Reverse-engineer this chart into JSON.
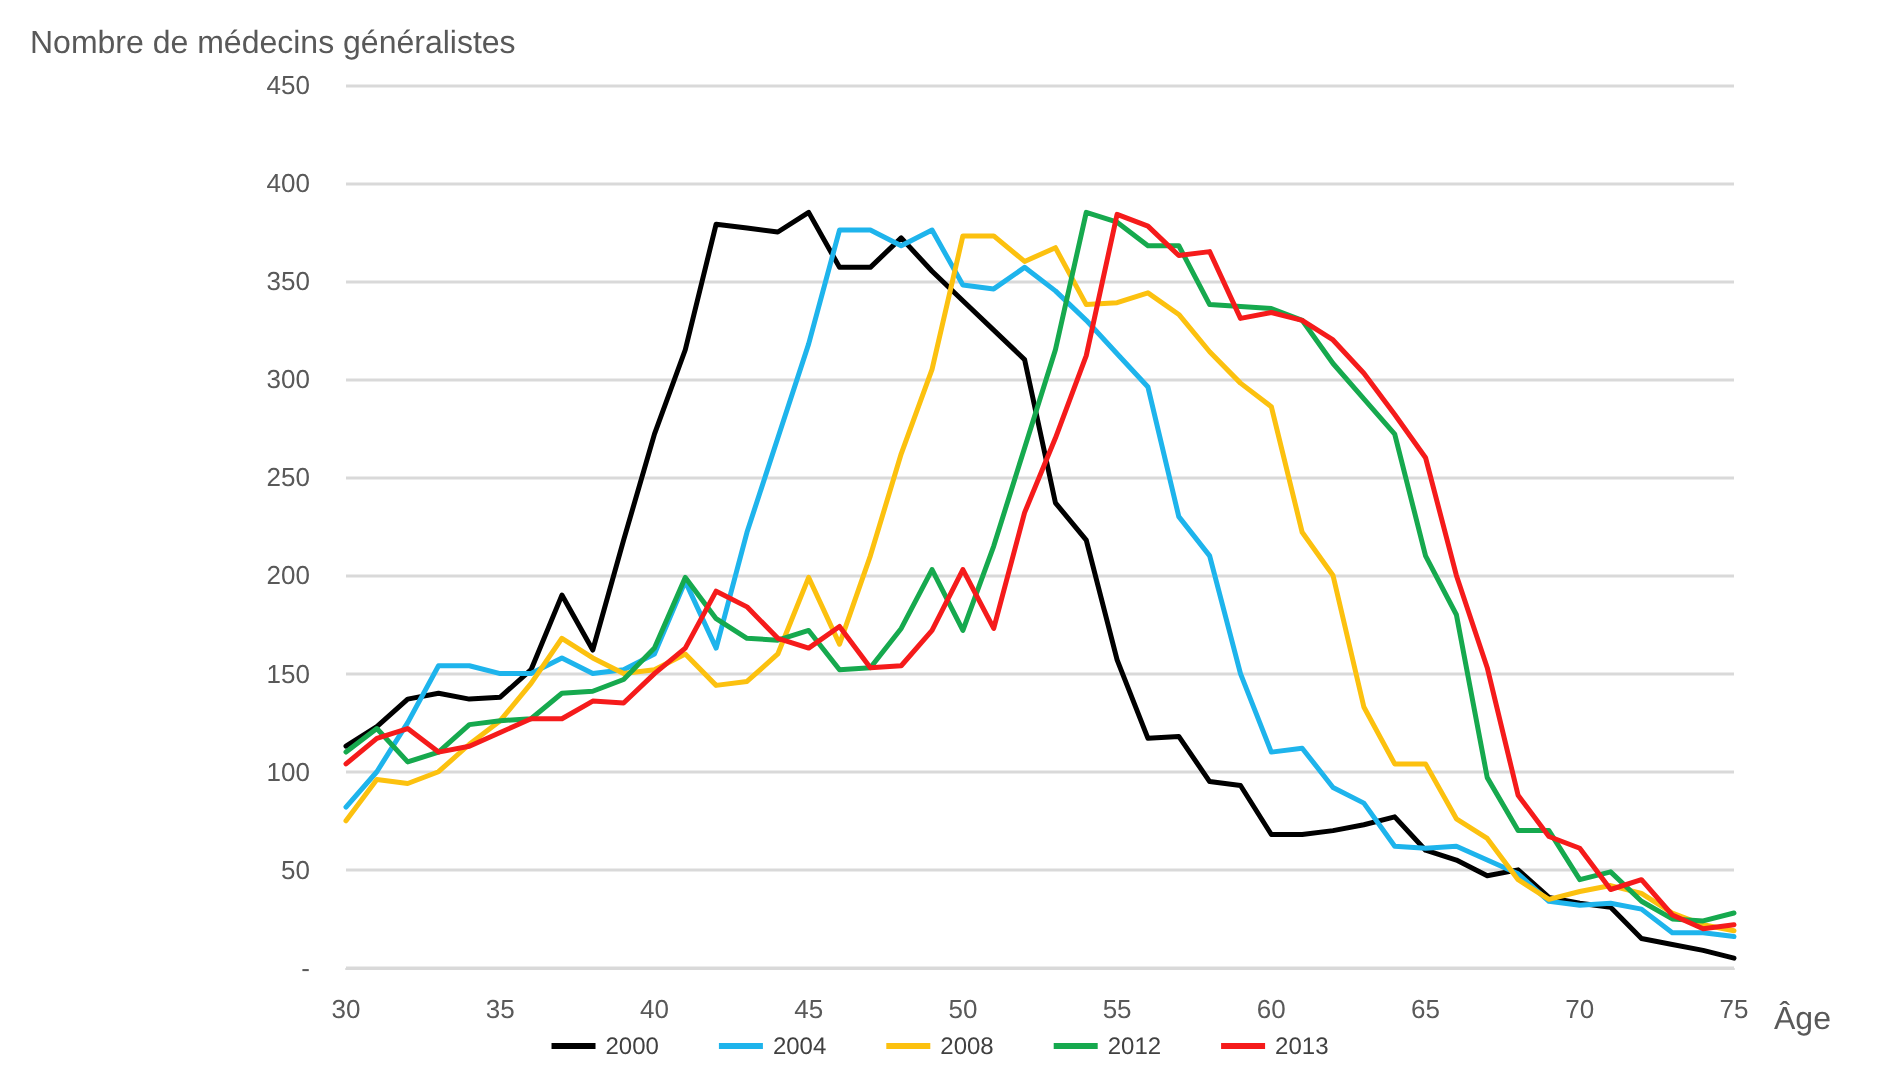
{
  "chart_data": {
    "type": "line",
    "xlabel": "Âge",
    "ylabel": "Nombre de médecins généralistes",
    "x": [
      30,
      31,
      32,
      33,
      34,
      35,
      36,
      37,
      38,
      39,
      40,
      41,
      42,
      43,
      44,
      45,
      46,
      47,
      48,
      49,
      50,
      51,
      52,
      53,
      54,
      55,
      56,
      57,
      58,
      59,
      60,
      61,
      62,
      63,
      64,
      65,
      66,
      67,
      68,
      69,
      70,
      71,
      72,
      73,
      74,
      75
    ],
    "xlim": [
      30,
      75
    ],
    "xticks": [
      30,
      35,
      40,
      45,
      50,
      55,
      60,
      65,
      70,
      75
    ],
    "ylim": [
      0,
      450
    ],
    "yticks": [
      {
        "value": 0,
        "label": "-"
      },
      50,
      100,
      150,
      200,
      250,
      300,
      350,
      400,
      450
    ],
    "grid": "y",
    "legend": "bottom",
    "marker": "none",
    "line_style": "solid",
    "series": [
      {
        "name": "2000",
        "color": "#000000",
        "values": [
          113,
          123,
          137,
          140,
          137,
          138,
          152,
          190,
          162,
          218,
          272,
          315,
          379,
          377,
          375,
          385,
          357,
          357,
          372,
          355,
          340,
          325,
          310,
          237,
          218,
          157,
          117,
          118,
          95,
          93,
          68,
          68,
          70,
          73,
          77,
          60,
          55,
          47,
          50,
          36,
          33,
          31,
          15,
          12,
          9,
          5
        ]
      },
      {
        "name": "2004",
        "color": "#1eb4ec",
        "values": [
          82,
          100,
          125,
          154,
          154,
          150,
          150,
          158,
          150,
          152,
          160,
          197,
          163,
          222,
          270,
          318,
          376,
          376,
          368,
          376,
          348,
          346,
          357,
          345,
          330,
          313,
          296,
          230,
          210,
          150,
          110,
          112,
          92,
          84,
          62,
          61,
          62,
          55,
          48,
          34,
          32,
          33,
          30,
          18,
          18,
          16
        ]
      },
      {
        "name": "2008",
        "color": "#fcc10f",
        "values": [
          75,
          96,
          94,
          100,
          114,
          126,
          145,
          168,
          158,
          150,
          152,
          160,
          144,
          146,
          160,
          199,
          165,
          210,
          262,
          305,
          373,
          373,
          360,
          367,
          338,
          339,
          344,
          333,
          314,
          298,
          286,
          222,
          200,
          133,
          104,
          104,
          76,
          66,
          45,
          35,
          39,
          42,
          38,
          28,
          22,
          19
        ]
      },
      {
        "name": "2012",
        "color": "#16a94e",
        "values": [
          110,
          122,
          105,
          110,
          124,
          126,
          127,
          140,
          141,
          147,
          163,
          199,
          178,
          168,
          167,
          172,
          152,
          153,
          173,
          203,
          172,
          215,
          265,
          315,
          385,
          380,
          368,
          368,
          338,
          337,
          336,
          330,
          308,
          290,
          272,
          210,
          180,
          97,
          70,
          70,
          45,
          49,
          34,
          25,
          24,
          28
        ]
      },
      {
        "name": "2013",
        "color": "#f51b1b",
        "values": [
          104,
          117,
          122,
          110,
          113,
          120,
          127,
          127,
          136,
          135,
          150,
          163,
          192,
          184,
          168,
          163,
          174,
          153,
          154,
          172,
          203,
          173,
          232,
          270,
          312,
          384,
          378,
          363,
          365,
          331,
          334,
          330,
          320,
          303,
          282,
          260,
          200,
          153,
          88,
          67,
          61,
          40,
          45,
          27,
          20,
          22
        ]
      }
    ]
  }
}
